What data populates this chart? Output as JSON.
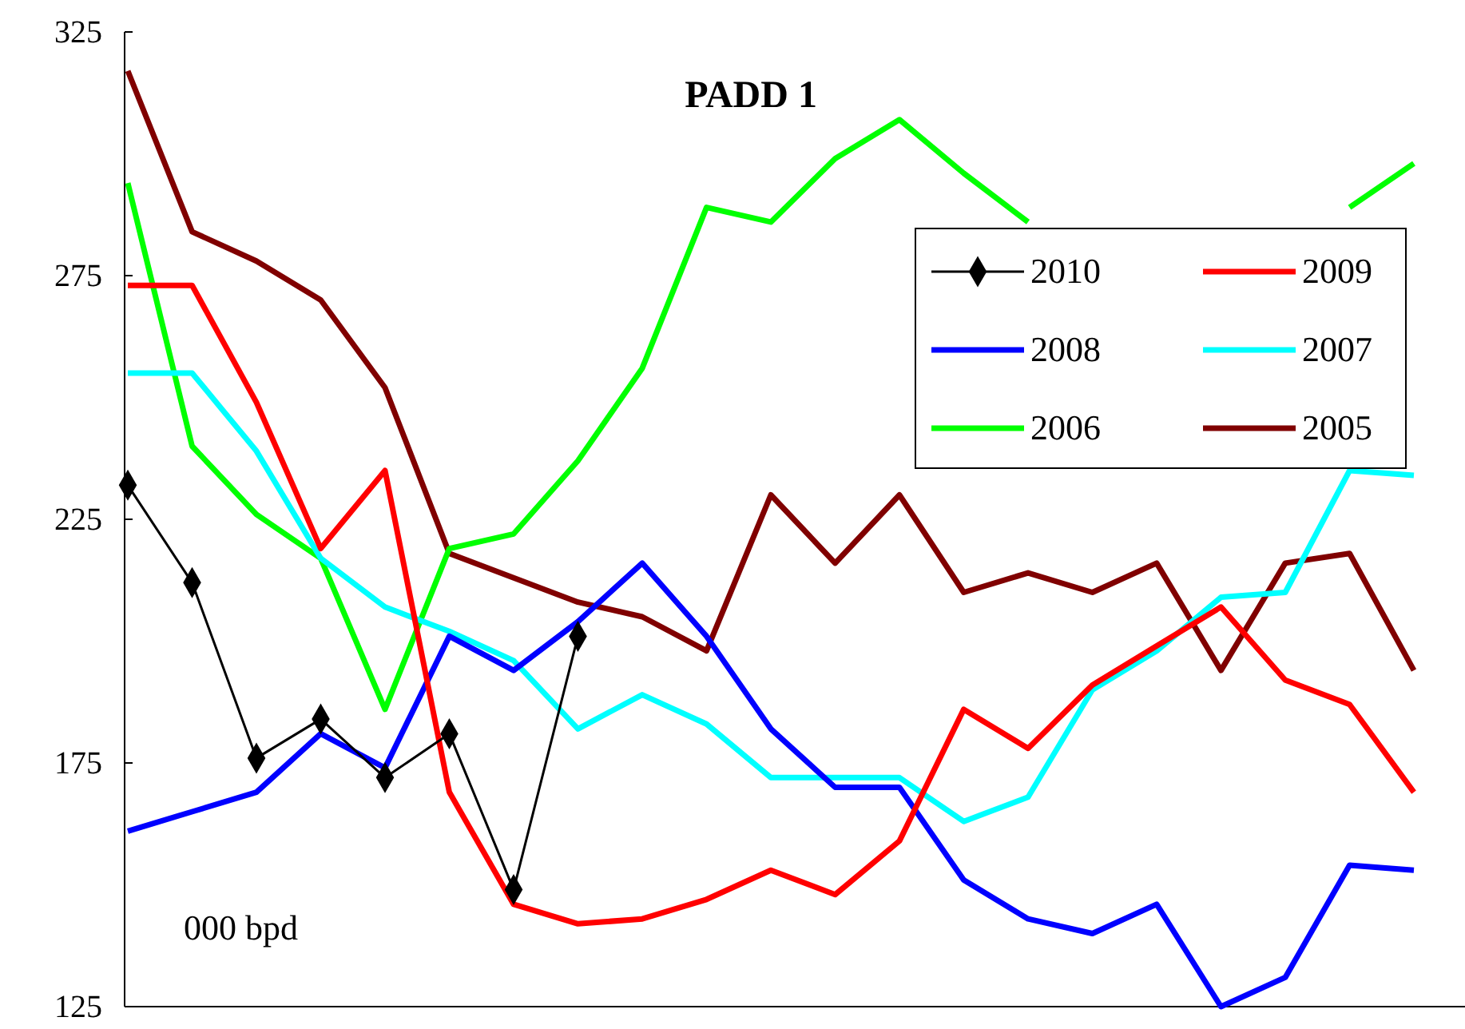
{
  "chart_data": {
    "type": "line",
    "title": "PADD 1",
    "annotations": [
      "000 bpd"
    ],
    "categories": [
      null,
      null,
      null,
      null,
      null,
      null,
      null,
      null,
      null,
      null,
      null,
      null,
      null,
      null,
      null,
      null,
      null,
      null,
      null,
      null,
      null
    ],
    "ylim": [
      125,
      325
    ],
    "yticks": [
      125,
      175,
      225,
      275,
      325
    ],
    "grid": false,
    "legend": "top right",
    "line_style": "solid",
    "series": [
      {
        "name": "2010",
        "color": "#000000",
        "marker": "diamond",
        "values": [
          232,
          212,
          176,
          184,
          172,
          181,
          149,
          201,
          null,
          null,
          null,
          null,
          null,
          null,
          null,
          null,
          null,
          null,
          null,
          null,
          null
        ]
      },
      {
        "name": "2009",
        "color": "#ff0000",
        "values": [
          273,
          273,
          249,
          219,
          235,
          169,
          146,
          142,
          143,
          147,
          153,
          148,
          159,
          186,
          178,
          191,
          199,
          207,
          192,
          187,
          169
        ]
      },
      {
        "name": "2008",
        "color": "#0000ff",
        "values": [
          161,
          165,
          169,
          181,
          174,
          201,
          194,
          204,
          216,
          201,
          182,
          170,
          170,
          151,
          143,
          140,
          146,
          125,
          131,
          154,
          153
        ]
      },
      {
        "name": "2007",
        "color": "#00ffff",
        "values": [
          255,
          255,
          239,
          217,
          207,
          202,
          196,
          182,
          189,
          183,
          172,
          172,
          172,
          163,
          168,
          190,
          198,
          209,
          210,
          235,
          234
        ]
      },
      {
        "name": "2006",
        "color": "#00ff00",
        "values": [
          294,
          240,
          226,
          217,
          186,
          219,
          222,
          237,
          256,
          289,
          286,
          299,
          307,
          296,
          286,
          null,
          null,
          null,
          null,
          289,
          298
        ]
      },
      {
        "name": "2005",
        "color": "#800000",
        "values": [
          317,
          284,
          278,
          270,
          252,
          218,
          213,
          208,
          205,
          198,
          230,
          216,
          230,
          210,
          214,
          210,
          216,
          194,
          216,
          218,
          194
        ]
      }
    ]
  }
}
